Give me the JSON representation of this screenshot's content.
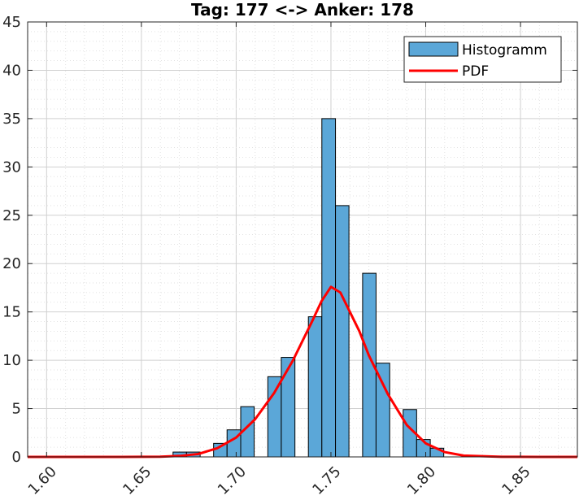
{
  "chart_data": {
    "type": "bar",
    "title": "Tag: 177 <-> Anker: 178",
    "xlabel": "",
    "ylabel": "",
    "xlim": [
      1.59,
      1.88
    ],
    "ylim": [
      0,
      45
    ],
    "x_ticks": [
      "1.60",
      "1.65",
      "1.70",
      "1.75",
      "1.80",
      "1.85"
    ],
    "x_tick_values": [
      1.6,
      1.65,
      1.7,
      1.75,
      1.8,
      1.85
    ],
    "x_tick_rotation_deg": -45,
    "y_ticks": [
      "0",
      "5",
      "10",
      "15",
      "20",
      "25",
      "30",
      "35",
      "40",
      "45"
    ],
    "y_tick_values": [
      0,
      5,
      10,
      15,
      20,
      25,
      30,
      35,
      40,
      45
    ],
    "grid": "major and minor",
    "legend_position": "top-right",
    "series": [
      {
        "name": "Histogramm",
        "kind": "histogram",
        "color": "#5ba7d8",
        "bins": [
          {
            "x0": 1.6667,
            "x1": 1.6738,
            "value": 0.5
          },
          {
            "x0": 1.6738,
            "x1": 1.681,
            "value": 0.5
          },
          {
            "x0": 1.6881,
            "x1": 1.6952,
            "value": 1.4
          },
          {
            "x0": 1.6952,
            "x1": 1.7024,
            "value": 2.8
          },
          {
            "x0": 1.7024,
            "x1": 1.7095,
            "value": 5.2
          },
          {
            "x0": 1.7167,
            "x1": 1.7238,
            "value": 8.3
          },
          {
            "x0": 1.7238,
            "x1": 1.731,
            "value": 10.3
          },
          {
            "x0": 1.7381,
            "x1": 1.7452,
            "value": 14.5
          },
          {
            "x0": 1.7452,
            "x1": 1.7524,
            "value": 35.0
          },
          {
            "x0": 1.7524,
            "x1": 1.7595,
            "value": 26.0
          },
          {
            "x0": 1.7667,
            "x1": 1.7738,
            "value": 19.0
          },
          {
            "x0": 1.7738,
            "x1": 1.781,
            "value": 9.7
          },
          {
            "x0": 1.7881,
            "x1": 1.7952,
            "value": 4.9
          },
          {
            "x0": 1.7952,
            "x1": 1.8024,
            "value": 1.8
          },
          {
            "x0": 1.8024,
            "x1": 1.8095,
            "value": 0.9
          }
        ]
      },
      {
        "name": "PDF",
        "kind": "line",
        "color": "#ff0000",
        "x": [
          1.59,
          1.6,
          1.62,
          1.64,
          1.66,
          1.67,
          1.68,
          1.69,
          1.7,
          1.71,
          1.72,
          1.73,
          1.735,
          1.74,
          1.745,
          1.75,
          1.755,
          1.76,
          1.765,
          1.77,
          1.78,
          1.79,
          1.8,
          1.81,
          1.82,
          1.84,
          1.86,
          1.88
        ],
        "y": [
          0,
          0,
          0,
          0,
          0.02,
          0.1,
          0.3,
          0.9,
          2.0,
          3.9,
          6.6,
          10.0,
          12.0,
          14.0,
          16.1,
          17.6,
          17.0,
          15.0,
          13.0,
          10.5,
          6.5,
          3.3,
          1.4,
          0.5,
          0.14,
          0.01,
          0,
          0
        ]
      }
    ]
  }
}
